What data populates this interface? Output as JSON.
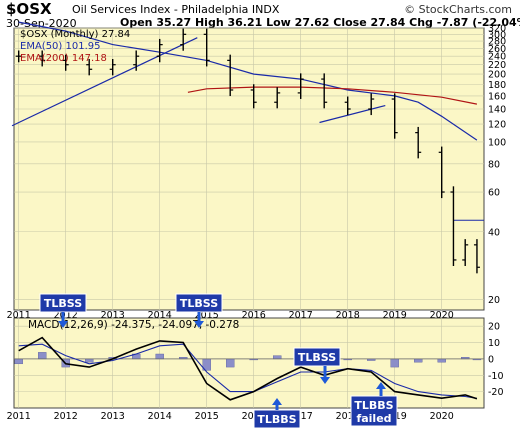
{
  "header": {
    "symbol": "$OSX",
    "name": "Oil Services Index - Philadelphia INDX",
    "date": "30-Sep-2020",
    "brand": "© StockCharts.com",
    "ohlc": "Open 35.27  High 36.21  Low 27.62  Close 27.84  Chg -7.87 (-22.04%)"
  },
  "legend": {
    "main": "$OSX (Monthly) 27.84",
    "ema50": "EMA(50) 101.95",
    "ema200": "EMA(200) 147.18",
    "macd": "MACD(12,26,9) -24.375, -24.097, -0.278"
  },
  "annotations": [
    {
      "text": "TLBSS"
    },
    {
      "text": "TLBSS"
    },
    {
      "text": "TLBSS"
    },
    {
      "text": "TLBBS"
    },
    {
      "text": "TLBBS failed"
    }
  ],
  "colors": {
    "panel_bg": "#fbf7c6",
    "grid": "#c8c8a8",
    "price": "#000000",
    "ema50": "#1a2aa8",
    "ema200": "#b01414",
    "trendline": "#1a2aa8",
    "macd": "#000000",
    "signal": "#1a2aa8",
    "histogram": "#8b8ec8",
    "label_bg": "#1f3aa8",
    "arrow": "#1f5ad8"
  },
  "chart_data": [
    {
      "type": "candlestick",
      "title": "$OSX Oil Services Index - Philadelphia INDX",
      "y_scale": "log",
      "ylim": [
        18,
        320
      ],
      "y_ticks": [
        320,
        300,
        280,
        260,
        240,
        220,
        200,
        180,
        160,
        140,
        120,
        100,
        80,
        60,
        40,
        20
      ],
      "x_tick_labels": [
        "2011",
        "2012",
        "2013",
        "2014",
        "2015",
        "2016",
        "2017",
        "2018",
        "2019",
        "2020"
      ],
      "x_range": [
        2010.9,
        2020.9
      ],
      "series": [
        {
          "name": "$OSX (Monthly)",
          "t": [
            2011.0,
            2011.5,
            2012.0,
            2012.5,
            2013.0,
            2013.5,
            2014.0,
            2014.5,
            2015.0,
            2015.5,
            2016.0,
            2016.5,
            2017.0,
            2017.5,
            2018.0,
            2018.5,
            2019.0,
            2019.5,
            2020.0,
            2020.25,
            2020.5,
            2020.75
          ],
          "close": [
            240,
            230,
            220,
            210,
            220,
            240,
            270,
            300,
            230,
            170,
            150,
            165,
            190,
            150,
            140,
            155,
            110,
            90,
            60,
            30,
            35,
            27.84
          ]
        },
        {
          "name": "EMA(50)",
          "t": [
            2011.0,
            2012.0,
            2013.0,
            2014.0,
            2015.0,
            2016.0,
            2017.0,
            2018.0,
            2019.0,
            2019.5,
            2020.0,
            2020.75
          ],
          "values": [
            340,
            310,
            270,
            250,
            230,
            200,
            190,
            170,
            160,
            150,
            130,
            101.95
          ]
        },
        {
          "name": "EMA(200)",
          "t": [
            2014.6,
            2015.0,
            2016.0,
            2017.0,
            2018.0,
            2019.0,
            2020.0,
            2020.75
          ],
          "values": [
            166,
            172,
            175,
            175,
            172,
            166,
            158,
            147.18
          ]
        }
      ]
    },
    {
      "type": "line+bar",
      "title": "MACD(12,26,9) -24.375, -24.097, -0.278",
      "ylim": [
        -30,
        25
      ],
      "y_ticks": [
        20,
        10,
        0,
        -10,
        -20
      ],
      "x_tick_labels": [
        "2011",
        "2012",
        "2013",
        "2014",
        "2015",
        "2016",
        "2017",
        "2018",
        "2019",
        "2020"
      ],
      "x_range": [
        2010.9,
        2020.9
      ],
      "series": [
        {
          "name": "MACD",
          "t": [
            2011.0,
            2011.5,
            2012.0,
            2012.5,
            2013.0,
            2013.5,
            2014.0,
            2014.5,
            2015.0,
            2015.5,
            2016.0,
            2016.5,
            2017.0,
            2017.5,
            2018.0,
            2018.5,
            2019.0,
            2019.5,
            2020.0,
            2020.5,
            2020.75
          ],
          "values": [
            5,
            13,
            -3,
            -5,
            0,
            6,
            11,
            10,
            -15,
            -25,
            -20,
            -12,
            -5,
            -10,
            -6,
            -8,
            -20,
            -22,
            -24,
            -22,
            -24.375
          ]
        },
        {
          "name": "Signal",
          "t": [
            2011.0,
            2011.5,
            2012.0,
            2012.5,
            2013.0,
            2013.5,
            2014.0,
            2014.5,
            2015.0,
            2015.5,
            2016.0,
            2016.5,
            2017.0,
            2017.5,
            2018.0,
            2018.5,
            2019.0,
            2019.5,
            2020.0,
            2020.5,
            2020.75
          ],
          "values": [
            8,
            9,
            2,
            -3,
            -1,
            3,
            8,
            9,
            -8,
            -20,
            -20,
            -14,
            -8,
            -8,
            -6,
            -7,
            -15,
            -20,
            -22,
            -23,
            -24.097
          ]
        },
        {
          "name": "Histogram",
          "t": [
            2011.0,
            2011.5,
            2012.0,
            2012.5,
            2013.0,
            2013.5,
            2014.0,
            2014.5,
            2015.0,
            2015.5,
            2016.0,
            2016.5,
            2017.0,
            2017.5,
            2018.0,
            2018.5,
            2019.0,
            2019.5,
            2020.0,
            2020.5,
            2020.75
          ],
          "values": [
            -3,
            4,
            -5,
            -2,
            1,
            3,
            3,
            1,
            -7,
            -5,
            0,
            2,
            3,
            -2,
            0,
            -1,
            -5,
            -2,
            -2,
            1,
            -0.278
          ]
        }
      ]
    }
  ]
}
